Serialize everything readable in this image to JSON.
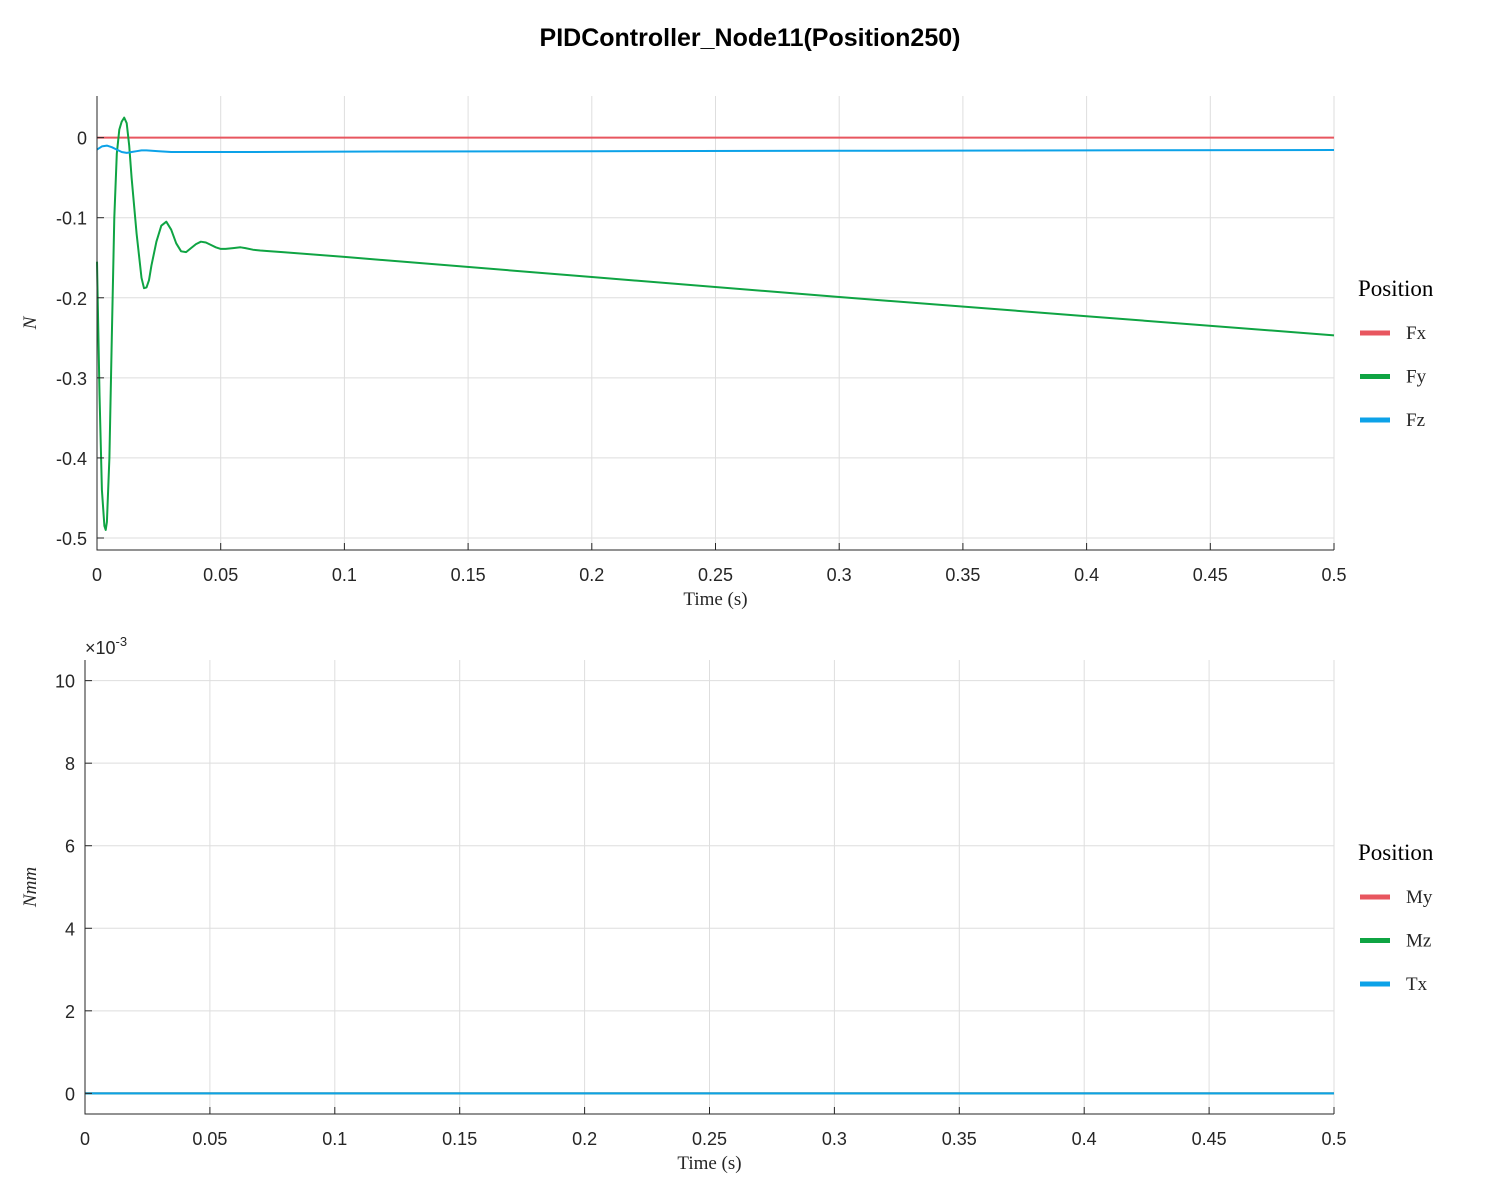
{
  "figure_title": "PIDController_Node11(Position250)",
  "chart_data": [
    {
      "type": "line",
      "xlabel": "Time (s)",
      "ylabel": "N",
      "xlim": [
        0,
        0.5
      ],
      "ylim": [
        -0.515,
        0.052
      ],
      "xticks": [
        0,
        0.05,
        0.1,
        0.15,
        0.2,
        0.25,
        0.3,
        0.35,
        0.4,
        0.45,
        0.5
      ],
      "xtick_labels": [
        "0",
        "0.05",
        "0.1",
        "0.15",
        "0.2",
        "0.25",
        "0.3",
        "0.35",
        "0.4",
        "0.45",
        "0.5"
      ],
      "yticks": [
        -0.5,
        -0.4,
        -0.3,
        -0.2,
        -0.1,
        0
      ],
      "ytick_labels": [
        "-0.5",
        "-0.4",
        "-0.3",
        "-0.2",
        "-0.1",
        "0"
      ],
      "grid": true,
      "legend_title": "Position",
      "legend_position": "right",
      "series": [
        {
          "name": "Fx",
          "color": "#e8565f",
          "x": [
            0,
            0.5
          ],
          "y": [
            0,
            0
          ]
        },
        {
          "name": "Fy",
          "color": "#0fa443",
          "x": [
            0,
            0.001,
            0.002,
            0.003,
            0.0035,
            0.004,
            0.005,
            0.006,
            0.007,
            0.008,
            0.009,
            0.01,
            0.011,
            0.012,
            0.013,
            0.014,
            0.016,
            0.018,
            0.019,
            0.02,
            0.021,
            0.022,
            0.024,
            0.026,
            0.028,
            0.03,
            0.032,
            0.034,
            0.036,
            0.038,
            0.04,
            0.042,
            0.044,
            0.046,
            0.048,
            0.05,
            0.052,
            0.055,
            0.058,
            0.06,
            0.063,
            0.066,
            0.07,
            0.075,
            0.1,
            0.2,
            0.3,
            0.4,
            0.5
          ],
          "y": [
            -0.155,
            -0.32,
            -0.44,
            -0.485,
            -0.49,
            -0.48,
            -0.4,
            -0.25,
            -0.1,
            -0.02,
            0.01,
            0.02,
            0.025,
            0.018,
            -0.01,
            -0.05,
            -0.12,
            -0.175,
            -0.188,
            -0.187,
            -0.178,
            -0.16,
            -0.13,
            -0.11,
            -0.105,
            -0.115,
            -0.132,
            -0.142,
            -0.143,
            -0.138,
            -0.133,
            -0.13,
            -0.131,
            -0.134,
            -0.137,
            -0.139,
            -0.139,
            -0.138,
            -0.137,
            -0.138,
            -0.14,
            -0.141,
            -0.142,
            -0.143,
            -0.149,
            -0.174,
            -0.199,
            -0.223,
            -0.247
          ]
        },
        {
          "name": "Fz",
          "color": "#0ca2e8",
          "x": [
            0,
            0.002,
            0.004,
            0.006,
            0.008,
            0.01,
            0.012,
            0.014,
            0.016,
            0.018,
            0.02,
            0.025,
            0.03,
            0.04,
            0.06,
            0.1,
            0.2,
            0.3,
            0.4,
            0.5
          ],
          "y": [
            -0.015,
            -0.011,
            -0.01,
            -0.012,
            -0.015,
            -0.018,
            -0.019,
            -0.018,
            -0.017,
            -0.016,
            -0.016,
            -0.017,
            -0.018,
            -0.018,
            -0.018,
            -0.0175,
            -0.017,
            -0.0165,
            -0.016,
            -0.0155
          ]
        }
      ]
    },
    {
      "type": "line",
      "xlabel": "Time (s)",
      "ylabel": "Nmm",
      "xlim": [
        0,
        0.5
      ],
      "ylim": [
        -0.0005,
        0.0105
      ],
      "exponent_label_base": "×10",
      "exponent_label_power": "-3",
      "xticks": [
        0,
        0.05,
        0.1,
        0.15,
        0.2,
        0.25,
        0.3,
        0.35,
        0.4,
        0.45,
        0.5
      ],
      "xtick_labels": [
        "0",
        "0.05",
        "0.1",
        "0.15",
        "0.2",
        "0.25",
        "0.3",
        "0.35",
        "0.4",
        "0.45",
        "0.5"
      ],
      "yticks": [
        0,
        0.002,
        0.004,
        0.006,
        0.008,
        0.01
      ],
      "ytick_labels": [
        "0",
        "2",
        "4",
        "6",
        "8",
        "10"
      ],
      "grid": true,
      "legend_title": "Position",
      "legend_position": "right",
      "series": [
        {
          "name": "My",
          "color": "#e8565f",
          "x": [
            0,
            0.5
          ],
          "y": [
            0,
            0
          ]
        },
        {
          "name": "Mz",
          "color": "#0fa443",
          "x": [
            0,
            0.5
          ],
          "y": [
            0,
            0
          ]
        },
        {
          "name": "Tx",
          "color": "#0ca2e8",
          "x": [
            0,
            0.5
          ],
          "y": [
            0,
            0
          ]
        }
      ]
    }
  ]
}
